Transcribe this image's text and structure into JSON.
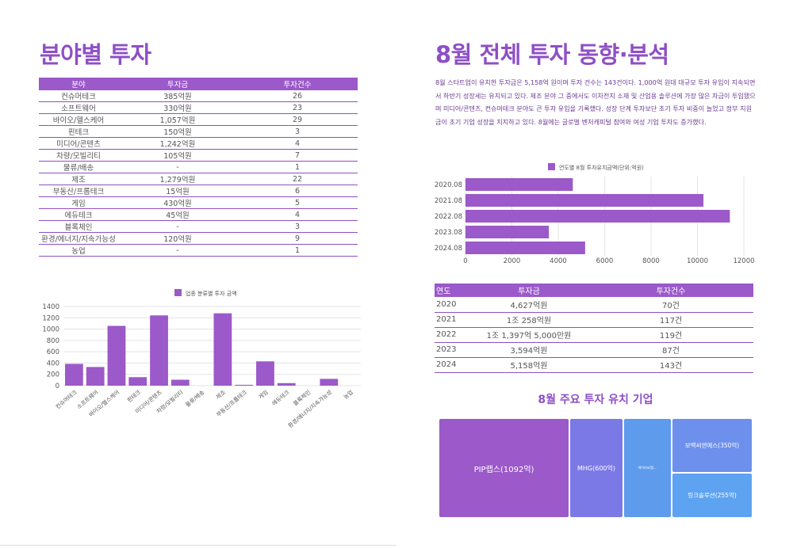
{
  "left": {
    "title": "분야별 투자",
    "table": {
      "headers": [
        "분야",
        "투자금",
        "투자건수"
      ],
      "rows": [
        [
          "컨슈머테크",
          "385억원",
          "26"
        ],
        [
          "소프트웨어",
          "330억원",
          "23"
        ],
        [
          "바이오/헬스케어",
          "1,057억원",
          "29"
        ],
        [
          "핀테크",
          "150억원",
          "3"
        ],
        [
          "미디어/콘텐츠",
          "1,242억원",
          "4"
        ],
        [
          "차량/모빌리티",
          "105억원",
          "7"
        ],
        [
          "물류/배송",
          "-",
          "1"
        ],
        [
          "제조",
          "1,279억원",
          "22"
        ],
        [
          "부동산/프롭테크",
          "15억원",
          "6"
        ],
        [
          "게임",
          "430억원",
          "5"
        ],
        [
          "에듀테크",
          "45억원",
          "4"
        ],
        [
          "블록체인",
          "-",
          "3"
        ],
        [
          "환경/에너지/지속가능성",
          "120억원",
          "9"
        ],
        [
          "농업",
          "-",
          "1"
        ]
      ]
    }
  },
  "right": {
    "title": "8월 전체 투자 동향·분석",
    "paragraph": "8월 스타트업이 유치한 투자금은 5,158억 원이며 투자 건수는 143건이다. 1,000억 원대 대규모 투자 유입이 지속되면서 하반기 성장세는 유지되고 있다. 제조 분야 그 중에서도 이차전지 소재 및 산업용 솔루션에 가장 많은 자금이 투입됐으며 미디어/콘텐츠, 컨슈머테크 분야도 큰 투자 유입을 기록했다. 성장 단계 투자보단 초기 투자 비중이 늘었고 정부 지원금이 초기 기업 성장을 지지하고 있다. 8월에는 글로벌 벤처캐피털 참여와 여성 기업 투자도 증가했다.",
    "table": {
      "headers": [
        "연도",
        "투자금",
        "투자건수"
      ],
      "rows": [
        [
          "2020",
          "4,627억원",
          "70건"
        ],
        [
          "2021",
          "1조 258억원",
          "117건"
        ],
        [
          "2022",
          "1조 1,397억 5,000만원",
          "119건"
        ],
        [
          "2023",
          "3,594억원",
          "87건"
        ],
        [
          "2024",
          "5,158억원",
          "143건"
        ]
      ]
    },
    "treemap": {
      "title": "8월 주요 투자 유치 기업",
      "items": [
        {
          "label": "PIP랩스(1092억)",
          "color": "#9b59c9"
        },
        {
          "label": "MHG(600억)",
          "color": "#7b79e6"
        },
        {
          "label": "에이피씨랩(...",
          "color": "#5e9bed"
        },
        {
          "label": "보백씨엔에스(350억)",
          "color": "#6d90ec"
        },
        {
          "label": "링크솔루션(255억)",
          "color": "#5ea3f2"
        }
      ]
    }
  },
  "chart_data": [
    {
      "type": "bar",
      "title": "",
      "legend": "업종 분류별 투자 금액",
      "categories": [
        "컨슈머테크",
        "소프트웨어",
        "바이오/헬스케어",
        "핀테크",
        "미디어/콘텐츠",
        "차량/모빌리티",
        "물류/배송",
        "제조",
        "부동산/프롭테크",
        "게임",
        "에듀테크",
        "블록체인",
        "환경/에너지/지속가능성",
        "농업"
      ],
      "values": [
        385,
        330,
        1057,
        150,
        1242,
        105,
        0,
        1279,
        15,
        430,
        45,
        0,
        120,
        0
      ],
      "ylim": [
        0,
        1400
      ],
      "yticks": [
        "0",
        "200",
        "400",
        "600",
        "800",
        "1000",
        "1200",
        "1400"
      ],
      "orientation": "vertical",
      "color": "#9b59c9"
    },
    {
      "type": "bar",
      "orientation": "horizontal",
      "legend": "연도별 8월 투자유치금액(단위:억원)",
      "categories": [
        "2020.08",
        "2021.08",
        "2022.08",
        "2023.08",
        "2024.08"
      ],
      "values": [
        4627,
        10258,
        11397,
        3594,
        5158
      ],
      "xlim": [
        0,
        12000
      ],
      "xticks": [
        "0",
        "2000",
        "4000",
        "6000",
        "8000",
        "10000",
        "12000"
      ],
      "color": "#9b59c9"
    }
  ]
}
